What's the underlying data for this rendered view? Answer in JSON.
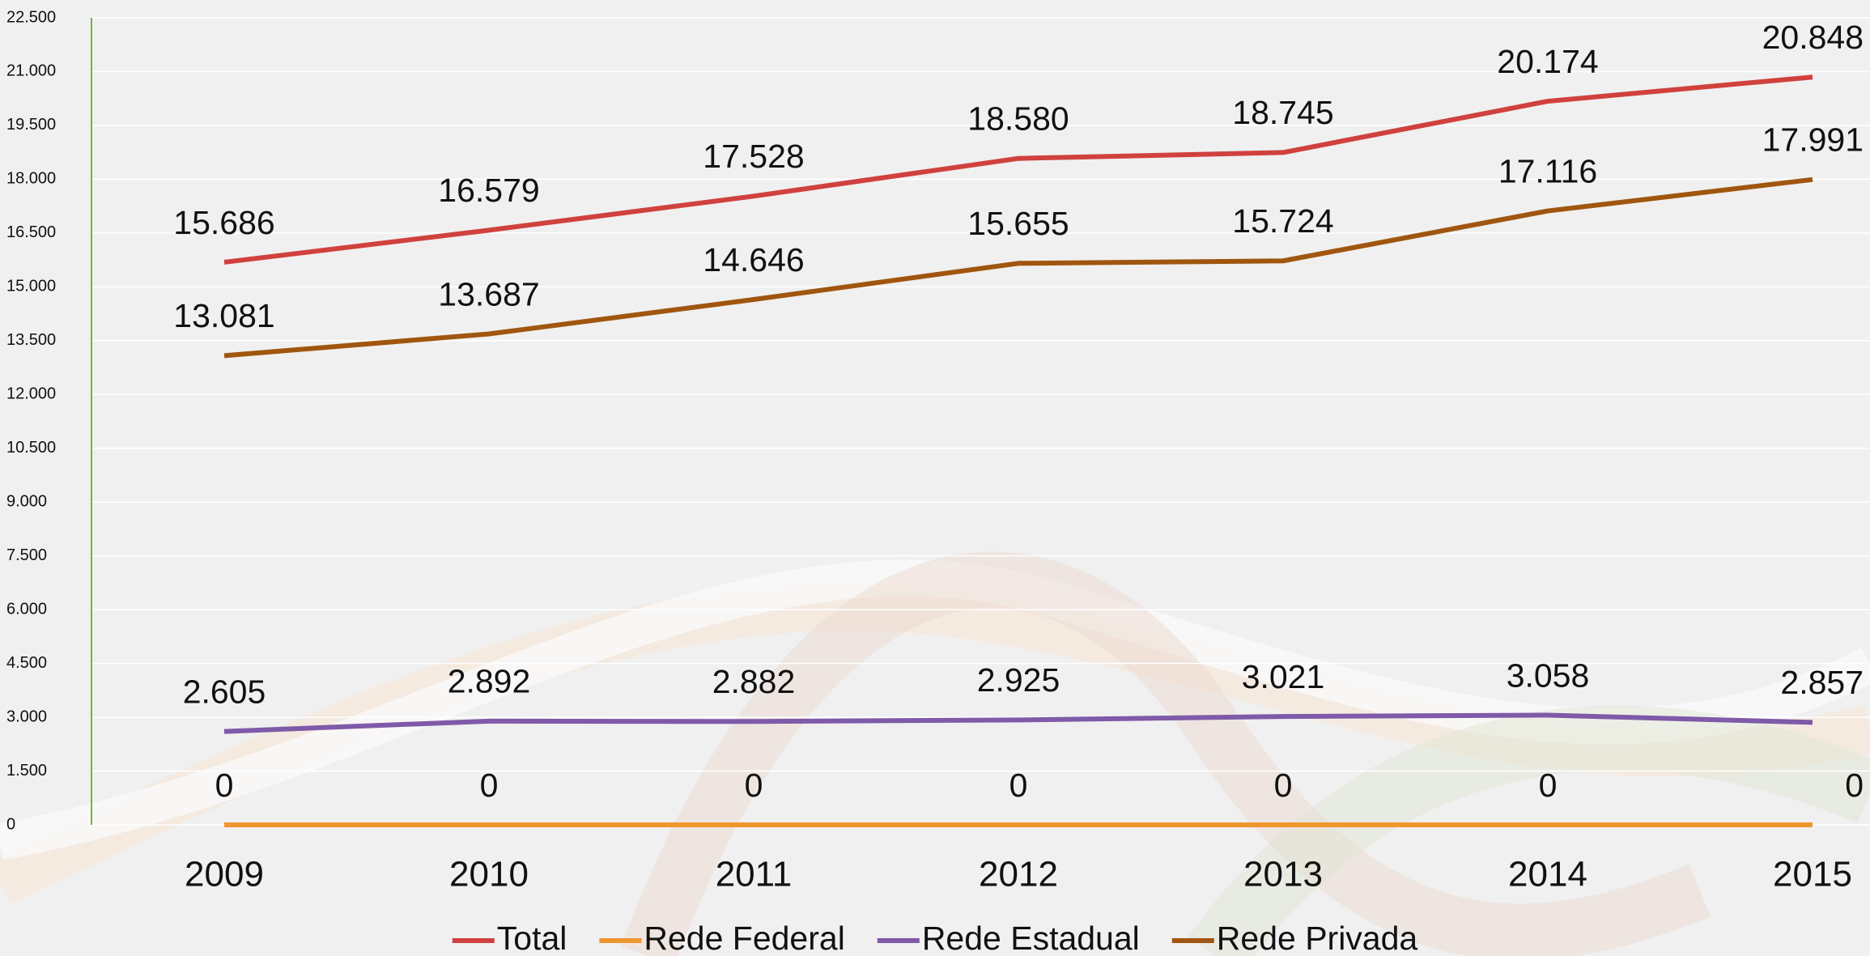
{
  "chart_data": {
    "type": "line",
    "categories": [
      "2009",
      "2010",
      "2011",
      "2012",
      "2013",
      "2014",
      "2015"
    ],
    "series": [
      {
        "name": "Total",
        "color": "#d0413e",
        "values": [
          15686,
          16579,
          17528,
          18580,
          18745,
          20174,
          20848
        ],
        "value_labels": [
          "15.686",
          "16.579",
          "17.528",
          "18.580",
          "18.745",
          "20.174",
          "20.848"
        ]
      },
      {
        "name": "Rede Federal",
        "color": "#f0962e",
        "values": [
          0,
          0,
          0,
          0,
          0,
          0,
          0
        ]
      },
      {
        "name": "Rede Estadual",
        "color": "#7f5aa8",
        "values": [
          2605,
          2892,
          2882,
          2925,
          3021,
          3058,
          2857
        ],
        "value_labels": [
          "2.605",
          "2.892",
          "2.882",
          "2.925",
          "3.021",
          "3.058",
          "2.857"
        ]
      },
      {
        "name": "Rede Privada",
        "color": "#a0560f",
        "values": [
          13081,
          13687,
          14646,
          15655,
          15724,
          17116,
          17991
        ],
        "value_labels": [
          "13.081",
          "13.687",
          "14.646",
          "15.655",
          "15.724",
          "17.116",
          "17.991"
        ]
      }
    ],
    "ylim": [
      0,
      22500
    ],
    "yticks": [
      0,
      {
        "value": 1500,
        "label": "1.500"
      },
      {
        "value": 3000,
        "label": "3.000"
      },
      {
        "value": 4500,
        "label": "4.500"
      },
      {
        "value": 6000,
        "label": "6.000"
      },
      {
        "value": 7500,
        "label": "7.500"
      },
      {
        "value": 9000,
        "label": "9.000"
      },
      {
        "value": 10500,
        "label": "10.500"
      },
      {
        "value": 12000,
        "label": "12.000"
      },
      {
        "value": 13500,
        "label": "13.500"
      },
      {
        "value": 15000,
        "label": "15.000"
      },
      {
        "value": 16500,
        "label": "16.500"
      },
      {
        "value": 18000,
        "label": "18.000"
      },
      {
        "value": 19500,
        "label": "19.500"
      },
      {
        "value": 21000,
        "label": "21.000"
      },
      {
        "value": 22500,
        "label": "22.500"
      }
    ],
    "grid": true,
    "legend": "bottom"
  }
}
